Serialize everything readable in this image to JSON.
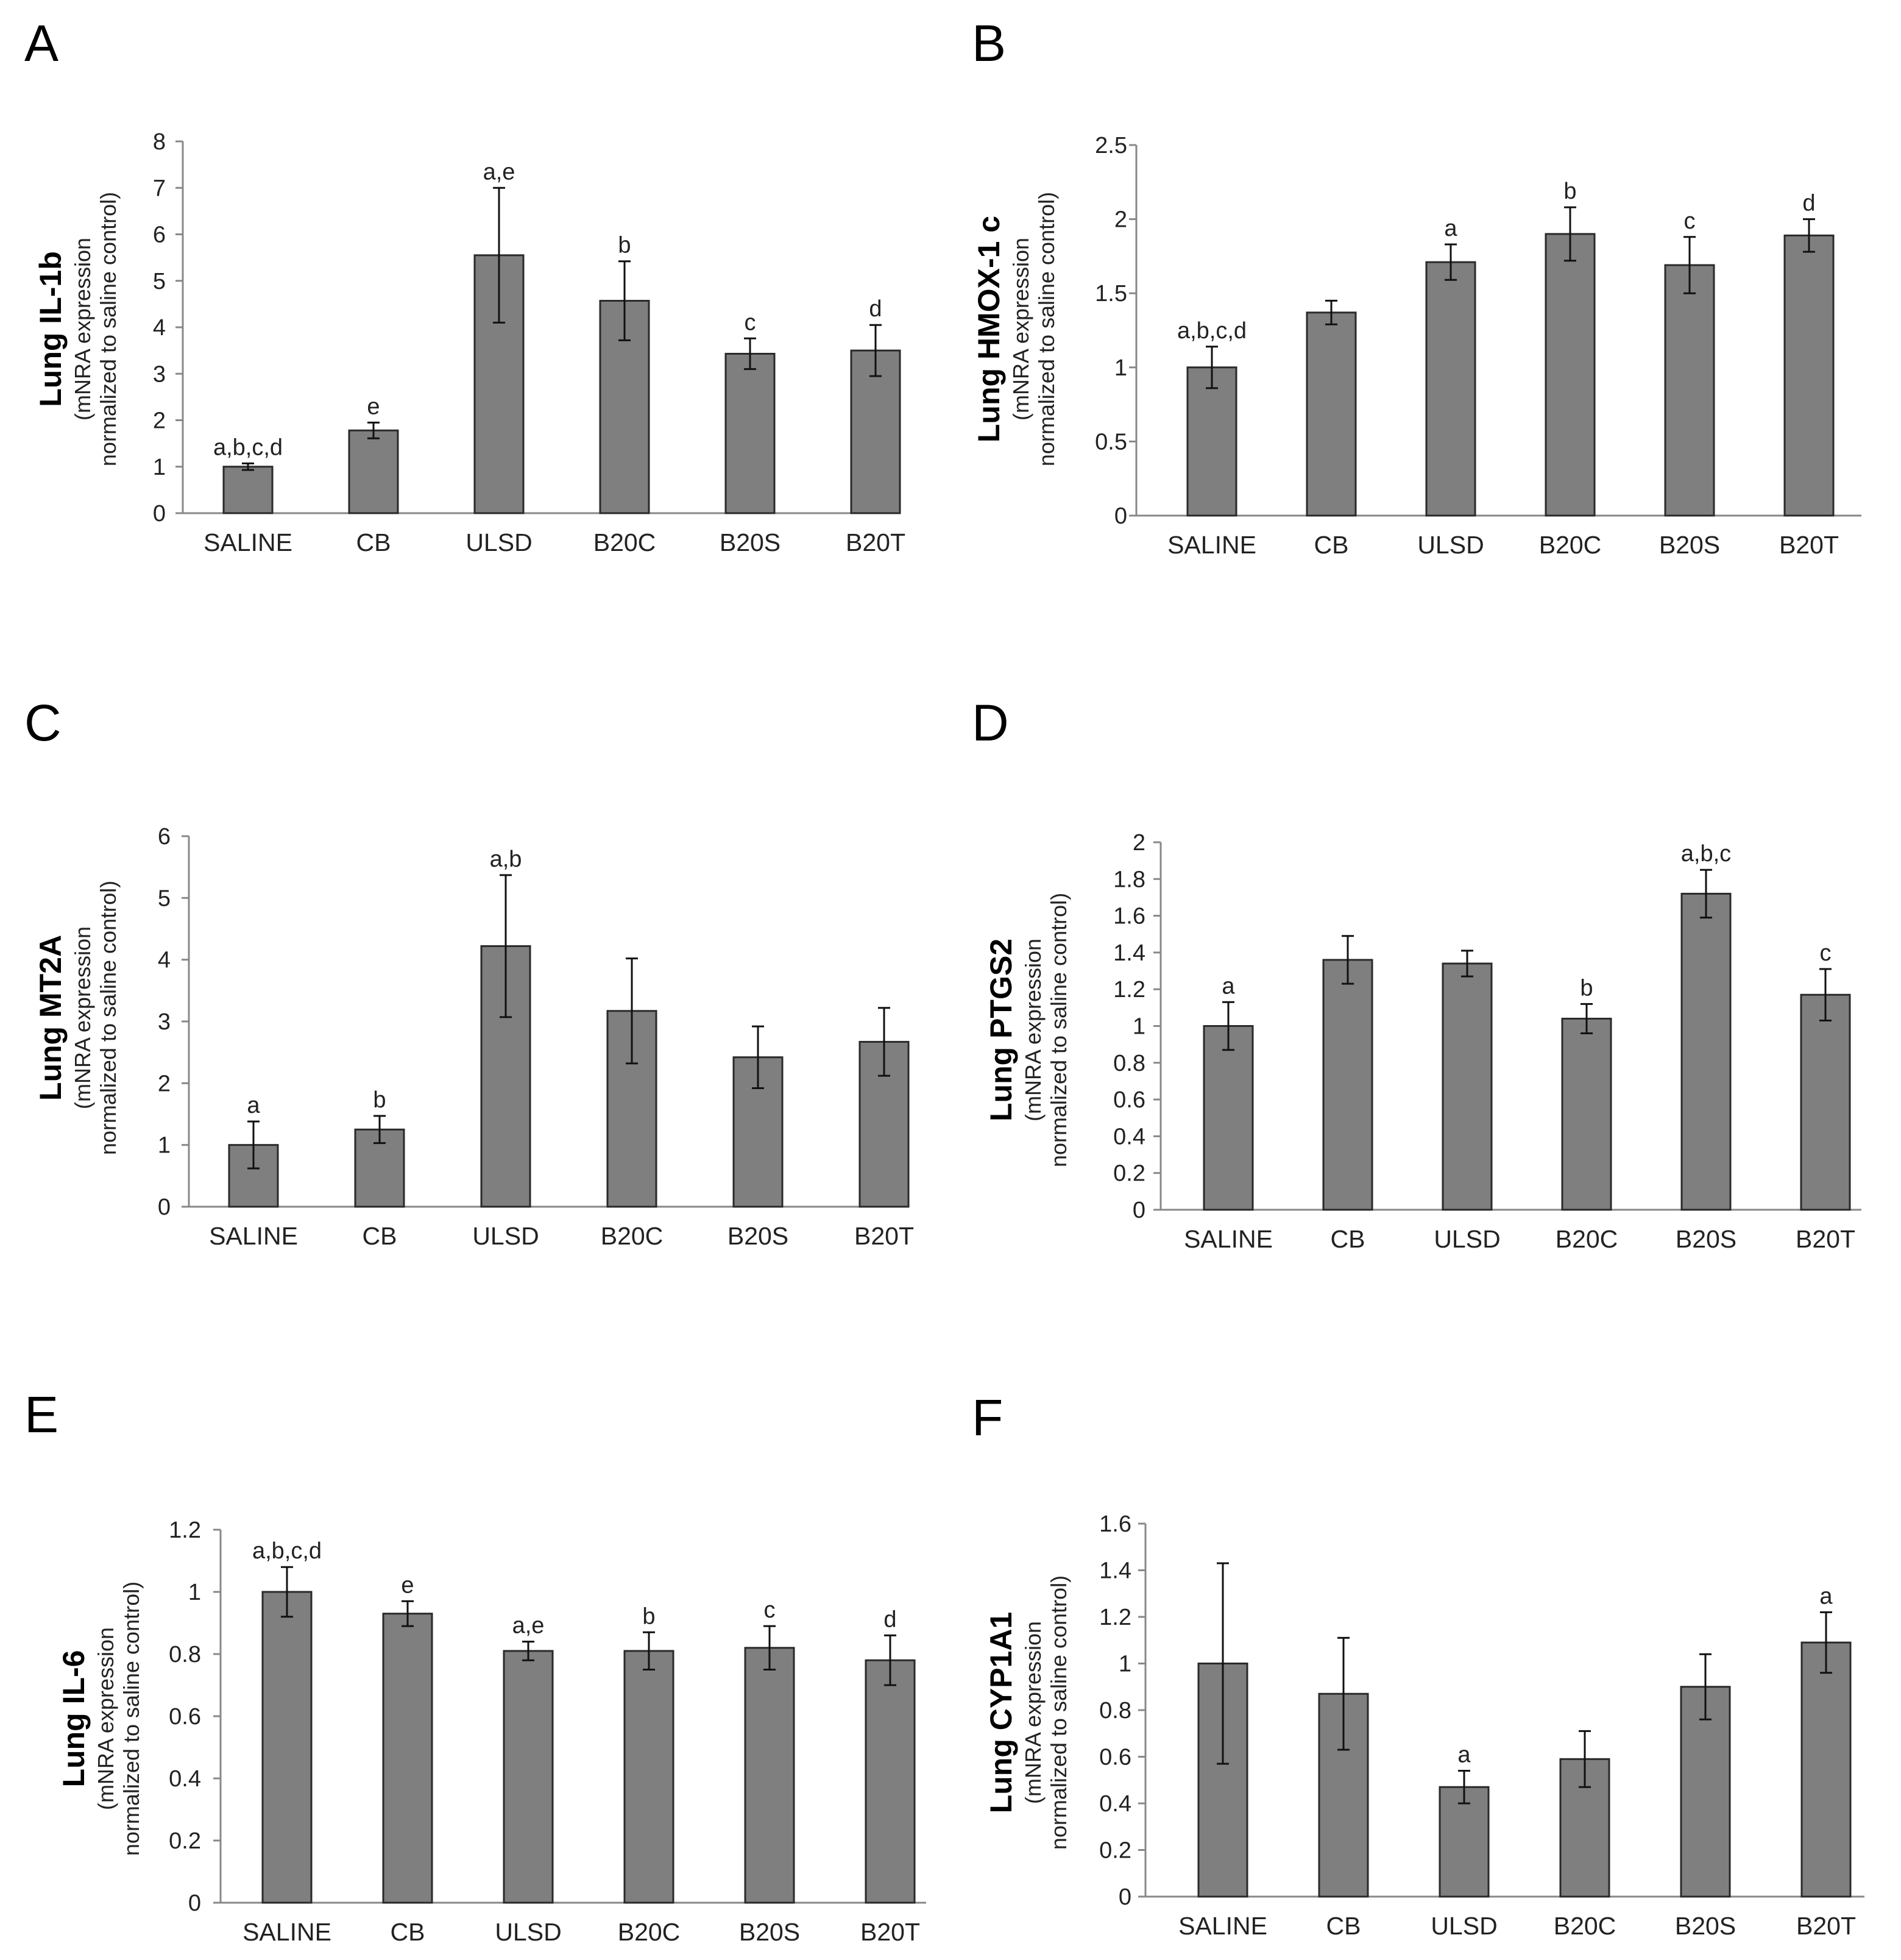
{
  "figure": {
    "ylabel_sub_line1": "(mNRA expression",
    "ylabel_sub_line2": "normalized to saline control)",
    "bar_color": "#7f7f7f"
  },
  "chart_data": [
    {
      "panel": "A",
      "type": "bar",
      "ylabel": "Lung IL-1b",
      "categories": [
        "SALINE",
        "CB",
        "ULSD",
        "B20C",
        "B20S",
        "B20T"
      ],
      "values": [
        1.0,
        1.78,
        5.55,
        4.57,
        3.43,
        3.5
      ],
      "errors": [
        0.07,
        0.17,
        1.45,
        0.85,
        0.33,
        0.55
      ],
      "annotations": [
        "a,b,c,d",
        "e",
        "a,e",
        "b",
        "c",
        "d"
      ],
      "ylim": [
        0,
        8
      ],
      "yticks": [
        0,
        1,
        2,
        3,
        4,
        5,
        6,
        7,
        8
      ],
      "ytick_labels": [
        "0",
        "1",
        "2",
        "3",
        "4",
        "5",
        "6",
        "7",
        "8"
      ]
    },
    {
      "panel": "B",
      "type": "bar",
      "ylabel": "Lung HMOX-1 c",
      "categories": [
        "SALINE",
        "CB",
        "ULSD",
        "B20C",
        "B20S",
        "B20T"
      ],
      "values": [
        1.0,
        1.37,
        1.71,
        1.9,
        1.69,
        1.89
      ],
      "errors": [
        0.14,
        0.08,
        0.12,
        0.18,
        0.19,
        0.11
      ],
      "annotations": [
        "a,b,c,d",
        "",
        "a",
        "b",
        "c",
        "d"
      ],
      "ylim": [
        0,
        2.5
      ],
      "yticks": [
        0,
        0.5,
        1,
        1.5,
        2,
        2.5
      ],
      "ytick_labels": [
        "0",
        "0.5",
        "1",
        "1.5",
        "2",
        "2.5"
      ]
    },
    {
      "panel": "C",
      "type": "bar",
      "ylabel": "Lung MT2A",
      "categories": [
        "SALINE",
        "CB",
        "ULSD",
        "B20C",
        "B20S",
        "B20T"
      ],
      "values": [
        1.0,
        1.25,
        4.22,
        3.17,
        2.42,
        2.67
      ],
      "errors": [
        0.38,
        0.22,
        1.15,
        0.85,
        0.5,
        0.55
      ],
      "annotations": [
        "a",
        "b",
        "a,b",
        "",
        "",
        ""
      ],
      "ylim": [
        0,
        6
      ],
      "yticks": [
        0,
        1,
        2,
        3,
        4,
        5,
        6
      ],
      "ytick_labels": [
        "0",
        "1",
        "2",
        "3",
        "4",
        "5",
        "6"
      ]
    },
    {
      "panel": "D",
      "type": "bar",
      "ylabel": "Lung PTGS2",
      "categories": [
        "SALINE",
        "CB",
        "ULSD",
        "B20C",
        "B20S",
        "B20T"
      ],
      "values": [
        1.0,
        1.36,
        1.34,
        1.04,
        1.72,
        1.17
      ],
      "errors": [
        0.13,
        0.13,
        0.07,
        0.08,
        0.13,
        0.14
      ],
      "annotations": [
        "a",
        "",
        "",
        "b",
        "a,b,c",
        "c"
      ],
      "ylim": [
        0,
        2
      ],
      "yticks": [
        0,
        0.2,
        0.4,
        0.6,
        0.8,
        1,
        1.2,
        1.4,
        1.6,
        1.8,
        2
      ],
      "ytick_labels": [
        "0",
        "0.2",
        "0.4",
        "0.6",
        "0.8",
        "1",
        "1.2",
        "1.4",
        "1.6",
        "1.8",
        "2"
      ]
    },
    {
      "panel": "E",
      "type": "bar",
      "ylabel": "Lung IL-6",
      "categories": [
        "SALINE",
        "CB",
        "ULSD",
        "B20C",
        "B20S",
        "B20T"
      ],
      "values": [
        1.0,
        0.93,
        0.81,
        0.81,
        0.82,
        0.78
      ],
      "errors": [
        0.08,
        0.04,
        0.03,
        0.06,
        0.07,
        0.08
      ],
      "annotations": [
        "a,b,c,d",
        "e",
        "a,e",
        "b",
        "c",
        "d"
      ],
      "ylim": [
        0,
        1.2
      ],
      "yticks": [
        0,
        0.2,
        0.4,
        0.6,
        0.8,
        1,
        1.2
      ],
      "ytick_labels": [
        "0",
        "0.2",
        "0.4",
        "0.6",
        "0.8",
        "1",
        "1.2"
      ]
    },
    {
      "panel": "F",
      "type": "bar",
      "ylabel": "Lung CYP1A1",
      "categories": [
        "SALINE",
        "CB",
        "ULSD",
        "B20C",
        "B20S",
        "B20T"
      ],
      "values": [
        1.0,
        0.87,
        0.47,
        0.59,
        0.9,
        1.09
      ],
      "errors": [
        0.43,
        0.24,
        0.07,
        0.12,
        0.14,
        0.13
      ],
      "annotations": [
        "",
        "",
        "a",
        "",
        "",
        "a"
      ],
      "ylim": [
        0,
        1.6
      ],
      "yticks": [
        0,
        0.2,
        0.4,
        0.6,
        0.8,
        1,
        1.2,
        1.4,
        1.6
      ],
      "ytick_labels": [
        "0",
        "0.2",
        "0.4",
        "0.6",
        "0.8",
        "1",
        "1.2",
        "1.4",
        "1.6"
      ]
    }
  ]
}
